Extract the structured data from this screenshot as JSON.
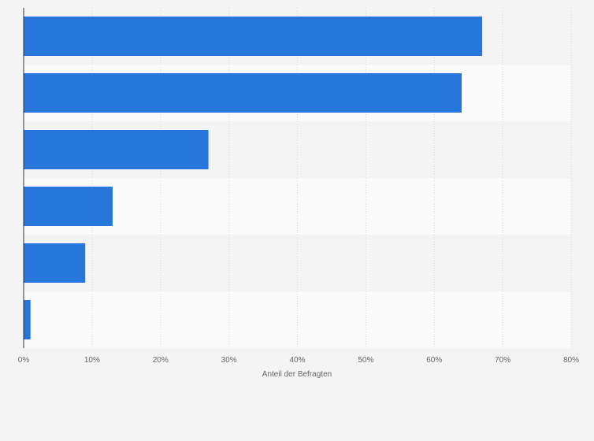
{
  "chart_data": {
    "type": "bar",
    "orientation": "horizontal",
    "categories": [
      "",
      "",
      "",
      "",
      "",
      ""
    ],
    "values": [
      67,
      64,
      27,
      13,
      9,
      1
    ],
    "title": "",
    "xlabel": "Anteil der Befragten",
    "ylabel": "",
    "xlim": [
      0,
      80
    ],
    "ticks": [
      0,
      10,
      20,
      30,
      40,
      50,
      60,
      70,
      80
    ],
    "tick_labels": [
      "0%",
      "10%",
      "20%",
      "30%",
      "40%",
      "50%",
      "60%",
      "70%",
      "80%"
    ],
    "grid": true,
    "legend": "none",
    "colors": {
      "bar": "#2776db",
      "band_dark": "#f4f4f4",
      "band_light": "#fafafa",
      "grid": "#d8d8d8",
      "axis": "#333333",
      "text": "#666666"
    }
  }
}
